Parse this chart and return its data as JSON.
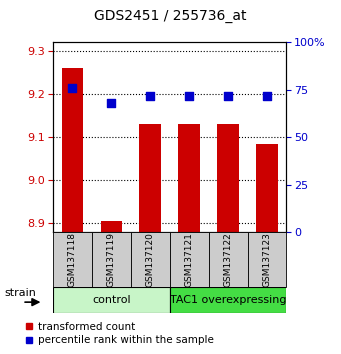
{
  "title": "GDS2451 / 255736_at",
  "samples": [
    "GSM137118",
    "GSM137119",
    "GSM137120",
    "GSM137121",
    "GSM137122",
    "GSM137123"
  ],
  "red_values": [
    9.26,
    8.905,
    9.13,
    9.13,
    9.13,
    9.085
  ],
  "blue_percentile": [
    76,
    68,
    72,
    72,
    72,
    72
  ],
  "ylim_left": [
    8.88,
    9.32
  ],
  "ylim_right": [
    0,
    100
  ],
  "yticks_left": [
    8.9,
    9.0,
    9.1,
    9.2,
    9.3
  ],
  "yticks_right": [
    0,
    25,
    50,
    75,
    100
  ],
  "ytick_labels_right": [
    "0",
    "25",
    "50",
    "75",
    "100%"
  ],
  "group_labels": [
    "control",
    "TAC1 overexpressing"
  ],
  "group_colors": [
    "#c8f5c8",
    "#44dd44"
  ],
  "bar_color": "#cc0000",
  "dot_color": "#0000cc",
  "bar_bottom": 8.88,
  "bar_width": 0.55,
  "dot_size": 28,
  "legend_red_label": "transformed count",
  "legend_blue_label": "percentile rank within the sample",
  "strain_label": "strain",
  "left_tick_color": "#cc0000",
  "right_tick_color": "#0000cc",
  "xticklabel_bg": "#cccccc"
}
